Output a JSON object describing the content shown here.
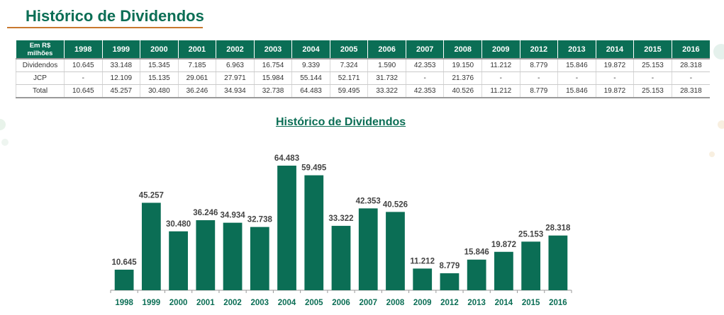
{
  "page": {
    "title": "Histórico de Dividendos"
  },
  "table": {
    "header_first": "Em R$ milhões",
    "years": [
      "1998",
      "1999",
      "2000",
      "2001",
      "2002",
      "2003",
      "2004",
      "2005",
      "2006",
      "2007",
      "2008",
      "2009",
      "2012",
      "2013",
      "2014",
      "2015",
      "2016"
    ],
    "rows": [
      {
        "label": "Dividendos",
        "values": [
          "10.645",
          "33.148",
          "15.345",
          "7.185",
          "6.963",
          "16.754",
          "9.339",
          "7.324",
          "1.590",
          "42.353",
          "19.150",
          "11.212",
          "8.779",
          "15.846",
          "19.872",
          "25.153",
          "28.318"
        ]
      },
      {
        "label": "JCP",
        "values": [
          "-",
          "12.109",
          "15.135",
          "29.061",
          "27.971",
          "15.984",
          "55.144",
          "52.171",
          "31.732",
          "-",
          "21.376",
          "-",
          "-",
          "-",
          "-",
          "-",
          "-"
        ]
      },
      {
        "label": "Total",
        "values": [
          "10.645",
          "45.257",
          "30.480",
          "36.246",
          "34.934",
          "32.738",
          "64.483",
          "59.495",
          "33.322",
          "42.353",
          "40.526",
          "11.212",
          "8.779",
          "15.846",
          "19.872",
          "25.153",
          "28.318"
        ]
      }
    ]
  },
  "colors": {
    "accent": "#0b6e55",
    "underline": "#c8782e"
  },
  "chart_data": {
    "type": "bar",
    "title": "Histórico de Dividendos",
    "xlabel": "",
    "ylabel": "",
    "categories": [
      "1998",
      "1999",
      "2000",
      "2001",
      "2002",
      "2003",
      "2004",
      "2005",
      "2006",
      "2007",
      "2008",
      "2009",
      "2012",
      "2013",
      "2014",
      "2015",
      "2016"
    ],
    "values": [
      10.645,
      45.257,
      30.48,
      36.246,
      34.934,
      32.738,
      64.483,
      59.495,
      33.322,
      42.353,
      40.526,
      11.212,
      8.779,
      15.846,
      19.872,
      25.153,
      28.318
    ],
    "value_labels": [
      "10.645",
      "45.257",
      "30.480",
      "36.246",
      "34.934",
      "32.738",
      "64.483",
      "59.495",
      "33.322",
      "42.353",
      "40.526",
      "11.212",
      "8.779",
      "15.846",
      "19.872",
      "25.153",
      "28.318"
    ],
    "ylim": [
      0,
      64.483
    ],
    "grid": false,
    "legend": "none"
  }
}
